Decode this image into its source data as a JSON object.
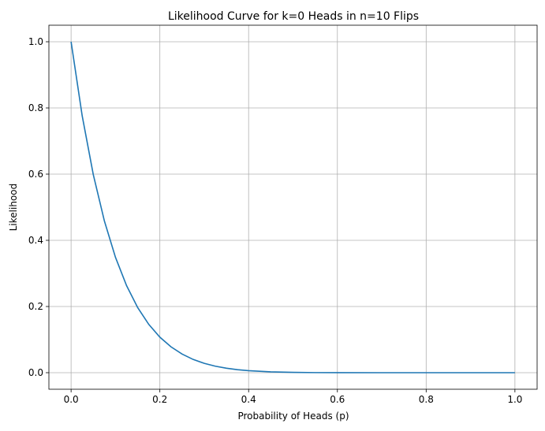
{
  "chart_data": {
    "type": "line",
    "title": "Likelihood Curve for k=0 Heads in n=10 Flips",
    "xlabel": "Probability of Heads (p)",
    "ylabel": "Likelihood",
    "xlim": [
      -0.05,
      1.05
    ],
    "ylim": [
      -0.05,
      1.05
    ],
    "grid": true,
    "xticks": [
      0.0,
      0.2,
      0.4,
      0.6,
      0.8,
      1.0
    ],
    "xtick_labels": [
      "0.0",
      "0.2",
      "0.4",
      "0.6",
      "0.8",
      "1.0"
    ],
    "yticks": [
      0.0,
      0.2,
      0.4,
      0.6,
      0.8,
      1.0
    ],
    "ytick_labels": [
      "0.0",
      "0.2",
      "0.4",
      "0.6",
      "0.8",
      "1.0"
    ],
    "colors": {
      "line": "#1f77b4",
      "grid": "#b0b0b0"
    },
    "series": [
      {
        "x": [
          0.0,
          0.025,
          0.05,
          0.075,
          0.1,
          0.125,
          0.15,
          0.175,
          0.2,
          0.225,
          0.25,
          0.275,
          0.3,
          0.325,
          0.35,
          0.375,
          0.4,
          0.45,
          0.5,
          0.55,
          0.6,
          0.7,
          0.8,
          0.9,
          1.0
        ],
        "y": [
          1.0,
          0.7763,
          0.5987,
          0.4586,
          0.3487,
          0.2631,
          0.1969,
          0.146,
          0.1074,
          0.0782,
          0.0563,
          0.0401,
          0.0282,
          0.0196,
          0.0135,
          0.0091,
          0.006,
          0.0025,
          0.001,
          0.0003,
          0.0001,
          0.0,
          0.0,
          0.0,
          0.0
        ]
      }
    ]
  }
}
